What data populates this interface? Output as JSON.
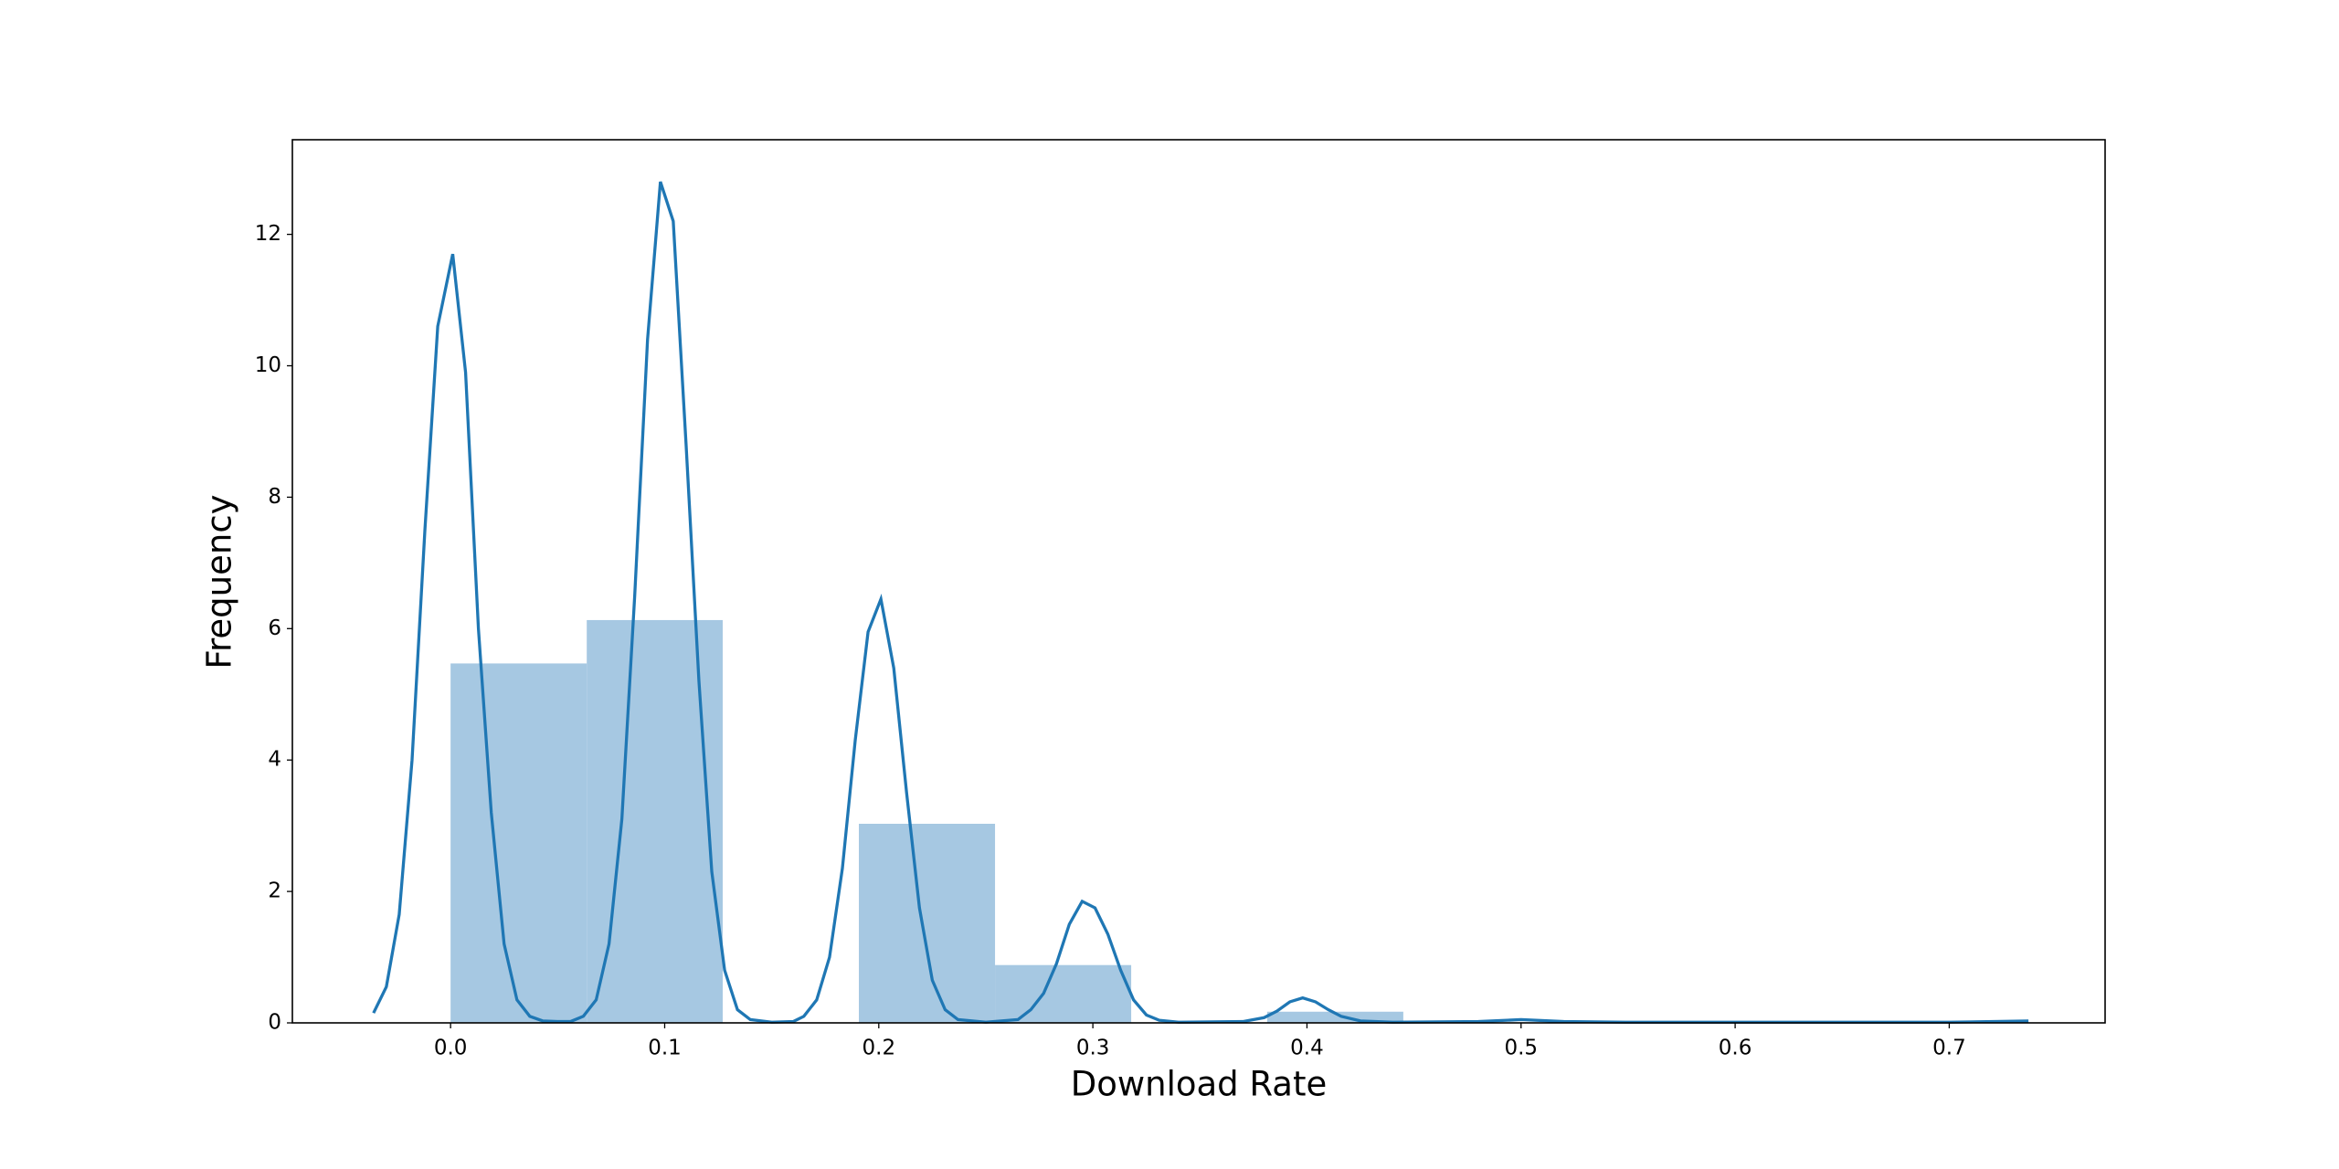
{
  "chart_data": {
    "type": "histogram",
    "xlabel": "Download Rate",
    "ylabel": "Frequency",
    "bins": [
      0,
      0.0636,
      0.1271,
      0.1907,
      0.2543,
      0.3179,
      0.3814,
      0.445
    ],
    "values": [
      5.47,
      6.13,
      0,
      3.03,
      0.88,
      0,
      0.17
    ],
    "color": "#a6c8e2",
    "line": {
      "color": "#1f77b4",
      "x": [
        -0.036,
        -0.03,
        -0.024,
        -0.018,
        -0.012,
        -0.006,
        0.001,
        0.007,
        0.013,
        0.019,
        0.025,
        0.031,
        0.037,
        0.043,
        0.05,
        0.056,
        0.062,
        0.068,
        0.074,
        0.08,
        0.086,
        0.092,
        0.098,
        0.104,
        0.11,
        0.116,
        0.122,
        0.128,
        0.134,
        0.14,
        0.15,
        0.16,
        0.165,
        0.171,
        0.177,
        0.183,
        0.189,
        0.195,
        0.201,
        0.207,
        0.213,
        0.219,
        0.225,
        0.231,
        0.237,
        0.25,
        0.265,
        0.271,
        0.277,
        0.283,
        0.289,
        0.295,
        0.301,
        0.307,
        0.313,
        0.319,
        0.325,
        0.331,
        0.34,
        0.37,
        0.38,
        0.386,
        0.392,
        0.398,
        0.404,
        0.41,
        0.416,
        0.425,
        0.44,
        0.48,
        0.5,
        0.52,
        0.55,
        0.6,
        0.7,
        0.737
      ],
      "values": [
        0.15,
        0.55,
        1.65,
        4.0,
        7.5,
        10.6,
        11.7,
        9.9,
        6.0,
        3.2,
        1.2,
        0.35,
        0.1,
        0.03,
        0.02,
        0.02,
        0.1,
        0.35,
        1.2,
        3.1,
        6.5,
        10.4,
        12.8,
        12.2,
        8.8,
        5.2,
        2.3,
        0.8,
        0.2,
        0.05,
        0.01,
        0.02,
        0.1,
        0.35,
        1.0,
        2.35,
        4.3,
        5.95,
        6.45,
        5.4,
        3.5,
        1.75,
        0.65,
        0.2,
        0.05,
        0.01,
        0.05,
        0.2,
        0.45,
        0.9,
        1.5,
        1.85,
        1.75,
        1.35,
        0.8,
        0.35,
        0.12,
        0.04,
        0.01,
        0.02,
        0.08,
        0.18,
        0.32,
        0.38,
        0.32,
        0.2,
        0.1,
        0.03,
        0.01,
        0.02,
        0.05,
        0.02,
        0.01,
        0.01,
        0.01,
        0.03
      ]
    },
    "xlim": [
      -0.0739,
      0.7728
    ],
    "ylim": [
      0,
      13.44
    ],
    "xticks": [
      {
        "value": 0,
        "label": "0.0"
      },
      0.1,
      0.2,
      0.3,
      0.4,
      0.5,
      0.6,
      0.7
    ],
    "yticks": [
      0,
      2,
      4,
      6,
      8,
      10,
      12
    ]
  }
}
